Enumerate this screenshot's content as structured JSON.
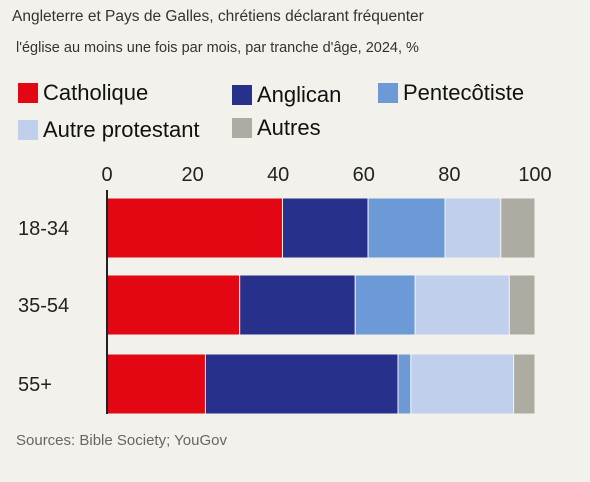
{
  "chart_data": {
    "type": "bar",
    "orientation": "horizontal",
    "stacked": true,
    "title": "Angleterre et Pays de Galles, chrétiens déclarant fréquenter",
    "subtitle": "l'église au moins une fois par mois, par tranche d'âge, 2024, %",
    "categories": [
      "18-34",
      "35-54",
      "55+"
    ],
    "series": [
      {
        "name": "Catholique",
        "color": "#e30613",
        "values": [
          41,
          31,
          23
        ]
      },
      {
        "name": "Anglican",
        "color": "#27318b",
        "values": [
          20,
          27,
          45
        ]
      },
      {
        "name": "Pentecôtiste",
        "color": "#6b9ad6",
        "values": [
          18,
          14,
          3
        ]
      },
      {
        "name": "Autre protestant",
        "color": "#bfcfec",
        "values": [
          13,
          22,
          24
        ]
      },
      {
        "name": "Autres",
        "color": "#aeaba2",
        "values": [
          8,
          6,
          5
        ]
      }
    ],
    "xlim": [
      0,
      100
    ],
    "xticks": [
      0,
      20,
      40,
      60,
      80,
      100
    ],
    "xaxis_position": "top",
    "grid": false,
    "legend_position": "top-left"
  },
  "source": "Sources: Bible Society; YouGov"
}
